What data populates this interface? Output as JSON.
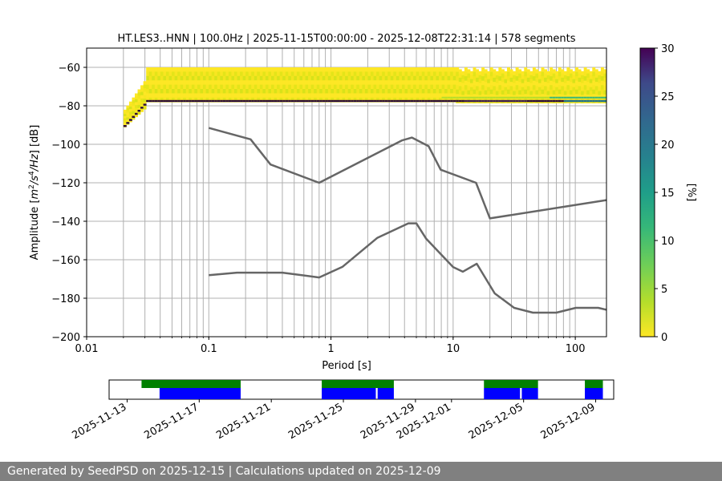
{
  "chart_data": [
    {
      "type": "heatmap",
      "title": "HT.LES3..HNN | 100.0Hz | 2025-11-15T00:00:00 - 2025-12-08T22:31:14 | 578 segments",
      "xlabel": "Period [s]",
      "ylabel": "Amplitude [m²/s⁴/Hz] [dB]",
      "xscale": "log",
      "xlim": [
        0.01,
        180
      ],
      "ylim": [
        -200,
        -50
      ],
      "xticks": [
        0.01,
        0.1,
        1,
        10,
        100
      ],
      "xtick_labels": [
        "0.01",
        "0.1",
        "1",
        "10",
        "100"
      ],
      "yticks": [
        -200,
        -180,
        -160,
        -140,
        -120,
        -100,
        -80,
        -60
      ],
      "ytick_labels": [
        "−200",
        "−180",
        "−160",
        "−140",
        "−120",
        "−100",
        "−80",
        "−60"
      ],
      "grid": true,
      "colormap": "viridis_r",
      "colorbar": {
        "label": "[%]",
        "range": [
          0,
          30
        ],
        "ticks": [
          0,
          5,
          10,
          15,
          20,
          25,
          30
        ],
        "tick_labels": [
          "0",
          "5",
          "10",
          "15",
          "20",
          "25",
          "30"
        ]
      },
      "noise_models": [
        {
          "points": [
            [
              0.1,
              -91.5
            ],
            [
              0.22,
              -97.4
            ],
            [
              0.32,
              -110.5
            ],
            [
              0.8,
              -120
            ],
            [
              3.8,
              -98
            ],
            [
              4.6,
              -96.5
            ],
            [
              6.3,
              -101
            ],
            [
              7.9,
              -113.2
            ],
            [
              15.4,
              -120
            ],
            [
              20,
              -138.5
            ],
            [
              180,
              -129
            ]
          ]
        },
        {
          "points": [
            [
              0.1,
              -168
            ],
            [
              0.17,
              -166.7
            ],
            [
              0.4,
              -166.7
            ],
            [
              0.8,
              -169.2
            ],
            [
              1.24,
              -163.7
            ],
            [
              2.4,
              -148.6
            ],
            [
              4.3,
              -141.1
            ],
            [
              5.0,
              -141.1
            ],
            [
              6.0,
              -149
            ],
            [
              10,
              -163.8
            ],
            [
              12,
              -166.2
            ],
            [
              15.6,
              -162.1
            ],
            [
              21.9,
              -177.5
            ],
            [
              31.6,
              -185
            ],
            [
              45,
              -187.5
            ],
            [
              70,
              -187.5
            ],
            [
              101,
              -185
            ],
            [
              154,
              -185
            ],
            [
              180,
              -186
            ]
          ]
        }
      ],
      "psd_band": {
        "period_range": [
          0.02,
          180
        ],
        "upper_db": -60,
        "lower_db": -78,
        "mode_db": -77.5
      }
    },
    {
      "type": "timeline",
      "x_tick_labels": [
        "2025-11-13",
        "2025-11-17",
        "2025-11-21",
        "2025-11-25",
        "2025-11-29",
        "2025-12-01",
        "2025-12-05",
        "2025-12-09"
      ],
      "x_ticks": [
        "2025-11-13",
        "2025-11-17",
        "2025-11-21",
        "2025-11-25",
        "2025-11-29",
        "2025-12-01",
        "2025-12-05",
        "2025-12-09"
      ],
      "xlim": [
        "2025-11-12",
        "2025-12-10"
      ],
      "colors": {
        "available": "#0000ff",
        "used": "#008000"
      },
      "used_periods": [
        [
          "2025-11-13.8",
          "2025-11-19.3"
        ],
        [
          "2025-11-23.8",
          "2025-11-27.8"
        ],
        [
          "2025-12-02.8",
          "2025-12-05.8"
        ],
        [
          "2025-12-08.4",
          "2025-12-09.4"
        ]
      ],
      "available_periods": [
        [
          "2025-11-14.8",
          "2025-11-19.3"
        ],
        [
          "2025-11-23.8",
          "2025-11-26.8"
        ],
        [
          "2025-11-26.9",
          "2025-11-27.8"
        ],
        [
          "2025-12-02.8",
          "2025-12-04.8"
        ],
        [
          "2025-12-04.9",
          "2025-12-05.8"
        ],
        [
          "2025-12-08.4",
          "2025-12-09.4"
        ]
      ]
    }
  ],
  "footer": {
    "text": "Generated by SeedPSD on 2025-12-15 | Calculations updated on 2025-12-09"
  }
}
